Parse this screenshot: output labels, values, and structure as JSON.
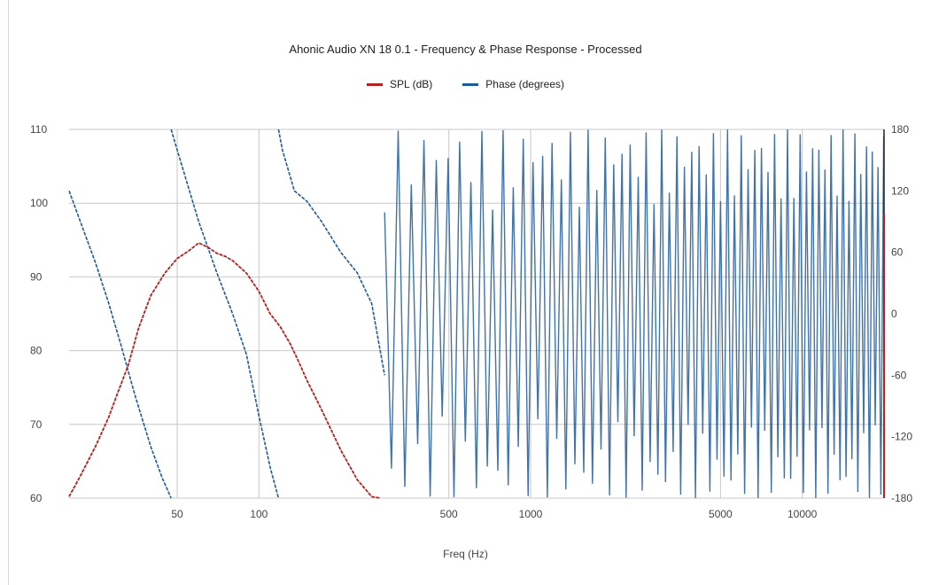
{
  "chart_data": {
    "type": "line",
    "title": "Ahonic Audio XN 18 0.1 - Frequency & Phase Response - Processed",
    "xlabel": "Freq (Hz)",
    "x_scale": "log",
    "xlim": [
      20,
      20000
    ],
    "x_ticks": [
      {
        "value": 50,
        "label": "50"
      },
      {
        "value": 100,
        "label": "100"
      },
      {
        "value": 500,
        "label": "500"
      },
      {
        "value": 1000,
        "label": "1000"
      },
      {
        "value": 5000,
        "label": "5000"
      },
      {
        "value": 10000,
        "label": "10000"
      }
    ],
    "y_left": {
      "label": "",
      "range": [
        60,
        110
      ],
      "ticks": [
        "110",
        "100",
        "90",
        "80",
        "70",
        "60"
      ]
    },
    "y_right": {
      "label": "",
      "range": [
        -180,
        180
      ],
      "ticks": [
        "180",
        "120",
        "60",
        "0",
        "-60",
        "-120",
        "-180"
      ]
    },
    "gridlines": "horizontal at y-left ticks, vertical at x ticks",
    "legend_position": "top-center",
    "series": [
      {
        "name": "SPL (dB)",
        "axis": "left",
        "color": "#b22222",
        "x": [
          20,
          22,
          25,
          28,
          30,
          33,
          36,
          40,
          45,
          50,
          55,
          60,
          65,
          70,
          75,
          80,
          90,
          100,
          110,
          120,
          130,
          140,
          150,
          170,
          200,
          230,
          260,
          280
        ],
        "y": [
          60.2,
          63,
          67,
          71,
          74,
          78,
          83,
          87.5,
          90.5,
          92.5,
          93.5,
          94.6,
          94,
          93.2,
          92.8,
          92.2,
          90.5,
          88,
          85,
          83.2,
          81,
          78.5,
          76,
          72,
          66.5,
          62.5,
          60.2,
          60
        ]
      },
      {
        "name": "Phase (degrees)",
        "axis": "right",
        "color": "#1f5a99",
        "segments": [
          {
            "x": [
              20,
              22,
              25,
              28,
              31,
              35,
              40,
              44,
              47.5
            ],
            "y": [
              120,
              90,
              50,
              10,
              -30,
              -80,
              -130,
              -160,
              -180
            ]
          },
          {
            "x": [
              47.5,
              50,
              60,
              70,
              80,
              90,
              100,
              110,
              118
            ],
            "y": [
              180,
              160,
              90,
              40,
              0,
              -40,
              -100,
              -150,
              -180
            ]
          },
          {
            "x": [
              118,
              122,
              135,
              150,
              170,
              200,
              230,
              260,
              290
            ],
            "y": [
              180,
              160,
              120,
              110,
              90,
              60,
              40,
              10,
              -60
            ]
          }
        ],
        "oscillation": {
          "x_start": 290,
          "x_end": 20000,
          "amplitude_deg": 180,
          "note": "dense phase wrapping, frequency of wrap increasing with Hz"
        }
      }
    ]
  }
}
